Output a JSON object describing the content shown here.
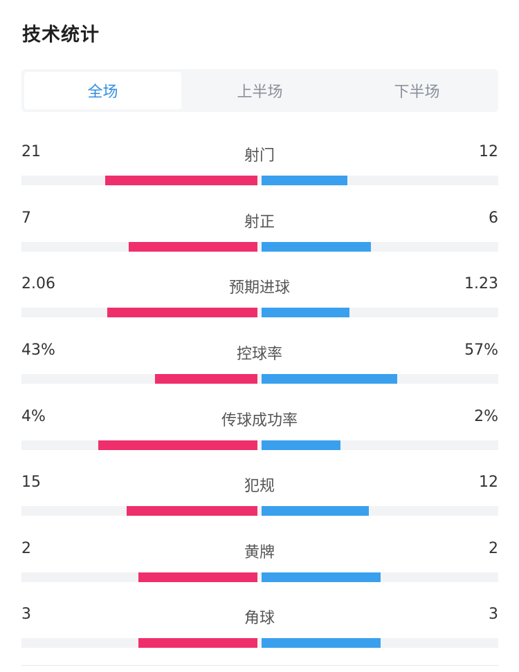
{
  "page": {
    "title": "技术统计"
  },
  "tabs": [
    {
      "label": "全场",
      "active": true
    },
    {
      "label": "上半场",
      "active": false
    },
    {
      "label": "下半场",
      "active": false
    }
  ],
  "colors": {
    "home": "#ef2f6b",
    "away": "#3aa0ee",
    "active_tab": "#2e8fe0"
  },
  "stats": [
    {
      "label": "射门",
      "home": "21",
      "away": "12",
      "home_frac": 0.64,
      "away_frac": 0.36
    },
    {
      "label": "射正",
      "home": "7",
      "away": "6",
      "home_frac": 0.54,
      "away_frac": 0.46
    },
    {
      "label": "预期进球",
      "home": "2.06",
      "away": "1.23",
      "home_frac": 0.63,
      "away_frac": 0.37
    },
    {
      "label": "控球率",
      "home": "43%",
      "away": "57%",
      "home_frac": 0.43,
      "away_frac": 0.57
    },
    {
      "label": "传球成功率",
      "home": "4%",
      "away": "2%",
      "home_frac": 0.67,
      "away_frac": 0.33
    },
    {
      "label": "犯规",
      "home": "15",
      "away": "12",
      "home_frac": 0.55,
      "away_frac": 0.45
    },
    {
      "label": "黄牌",
      "home": "2",
      "away": "2",
      "home_frac": 0.5,
      "away_frac": 0.5
    },
    {
      "label": "角球",
      "home": "3",
      "away": "3",
      "home_frac": 0.5,
      "away_frac": 0.5
    }
  ]
}
